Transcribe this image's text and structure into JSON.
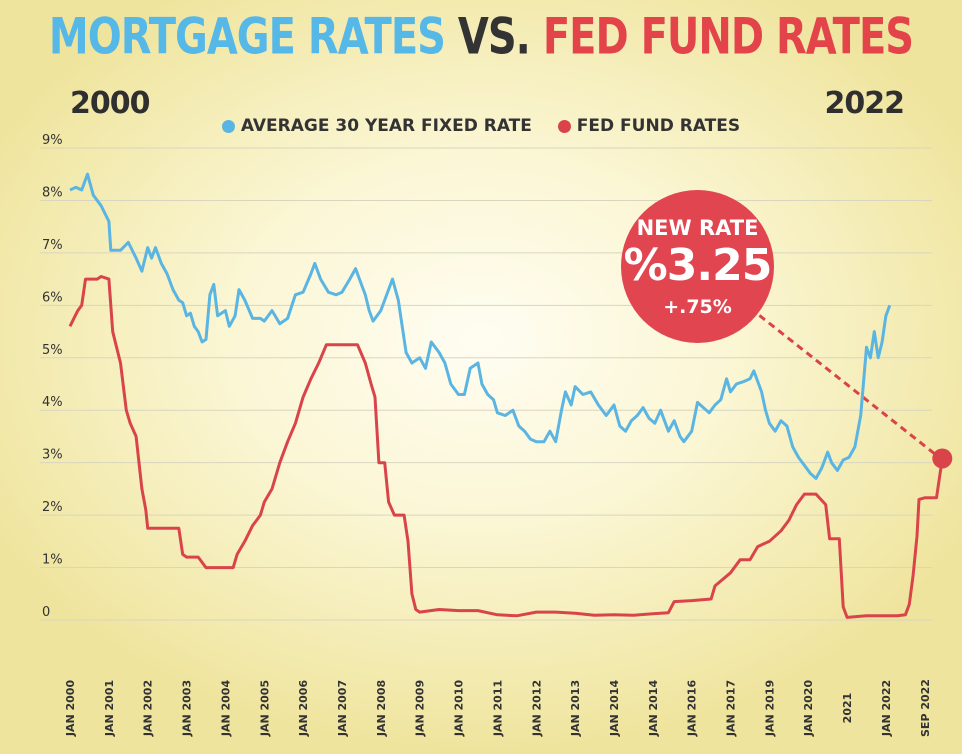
{
  "title": {
    "part1": "MORTGAGE RATES",
    "part2": "VS.",
    "part3": "FED FUND RATES"
  },
  "period": {
    "start": "2000",
    "end": "2022"
  },
  "colors": {
    "mortgage": "#5ab5e2",
    "fed": "#d9444a",
    "title_blue": "#55b8e6",
    "title_red": "#e2444a"
  },
  "annotation": {
    "label": "NEW RATE",
    "rate": "%3.25",
    "change": "+.75%"
  },
  "chart_data": {
    "type": "line",
    "ylim": [
      0,
      9
    ],
    "yticks": [
      {
        "v": 0,
        "label": "0"
      },
      {
        "v": 1,
        "label": "1%"
      },
      {
        "v": 2,
        "label": "2%"
      },
      {
        "v": 3,
        "label": "3%"
      },
      {
        "v": 4,
        "label": "4%"
      },
      {
        "v": 5,
        "label": "5%"
      },
      {
        "v": 6,
        "label": "6%"
      },
      {
        "v": 7,
        "label": "7%"
      },
      {
        "v": 8,
        "label": "8%"
      },
      {
        "v": 9,
        "label": "9%"
      }
    ],
    "xlim": [
      2000.0,
      2022.7
    ],
    "xticks": [
      {
        "x": 2000.0,
        "label": "JAN 2000"
      },
      {
        "x": 2001.0,
        "label": "JAN 2001"
      },
      {
        "x": 2002.0,
        "label": "JAN 2002"
      },
      {
        "x": 2003.0,
        "label": "JAN 2003"
      },
      {
        "x": 2004.0,
        "label": "JAN 2004"
      },
      {
        "x": 2005.0,
        "label": "JAN 2005"
      },
      {
        "x": 2006.0,
        "label": "JAN 2006"
      },
      {
        "x": 2007.0,
        "label": "JAN 2007"
      },
      {
        "x": 2008.0,
        "label": "JAN 2008"
      },
      {
        "x": 2009.0,
        "label": "JAN 2009"
      },
      {
        "x": 2010.0,
        "label": "JAN 2010"
      },
      {
        "x": 2011.0,
        "label": "JAN 2011"
      },
      {
        "x": 2012.0,
        "label": "JAN 2012"
      },
      {
        "x": 2013.0,
        "label": "JAN 2013"
      },
      {
        "x": 2014.0,
        "label": "JAN 2014"
      },
      {
        "x": 2015.0,
        "label": "JAN 2014"
      },
      {
        "x": 2016.0,
        "label": "JAN 2016"
      },
      {
        "x": 2017.0,
        "label": "JAN 2017"
      },
      {
        "x": 2018.0,
        "label": "JAN 2019"
      },
      {
        "x": 2019.0,
        "label": "JAN 2020"
      },
      {
        "x": 2020.0,
        "label": "2021"
      },
      {
        "x": 2021.0,
        "label": "JAN 2022"
      },
      {
        "x": 2022.0,
        "label": "SEP 2022"
      }
    ],
    "series": [
      {
        "name": "AVERAGE 30 YEAR FIXED RATE",
        "points": [
          [
            2000.0,
            8.2
          ],
          [
            2000.15,
            8.25
          ],
          [
            2000.3,
            8.2
          ],
          [
            2000.45,
            8.5
          ],
          [
            2000.6,
            8.1
          ],
          [
            2000.8,
            7.9
          ],
          [
            2001.0,
            7.6
          ],
          [
            2001.05,
            7.05
          ],
          [
            2001.3,
            7.05
          ],
          [
            2001.5,
            7.2
          ],
          [
            2001.7,
            6.9
          ],
          [
            2001.85,
            6.65
          ],
          [
            2002.0,
            7.1
          ],
          [
            2002.1,
            6.9
          ],
          [
            2002.2,
            7.1
          ],
          [
            2002.35,
            6.8
          ],
          [
            2002.5,
            6.6
          ],
          [
            2002.65,
            6.3
          ],
          [
            2002.8,
            6.1
          ],
          [
            2002.9,
            6.05
          ],
          [
            2003.0,
            5.8
          ],
          [
            2003.1,
            5.85
          ],
          [
            2003.2,
            5.6
          ],
          [
            2003.3,
            5.5
          ],
          [
            2003.4,
            5.3
          ],
          [
            2003.5,
            5.35
          ],
          [
            2003.6,
            6.2
          ],
          [
            2003.7,
            6.4
          ],
          [
            2003.8,
            5.8
          ],
          [
            2004.0,
            5.9
          ],
          [
            2004.1,
            5.6
          ],
          [
            2004.25,
            5.8
          ],
          [
            2004.35,
            6.3
          ],
          [
            2004.5,
            6.1
          ],
          [
            2004.7,
            5.75
          ],
          [
            2004.9,
            5.75
          ],
          [
            2005.0,
            5.7
          ],
          [
            2005.2,
            5.9
          ],
          [
            2005.4,
            5.65
          ],
          [
            2005.6,
            5.75
          ],
          [
            2005.8,
            6.2
          ],
          [
            2006.0,
            6.25
          ],
          [
            2006.2,
            6.6
          ],
          [
            2006.3,
            6.8
          ],
          [
            2006.45,
            6.5
          ],
          [
            2006.65,
            6.25
          ],
          [
            2006.85,
            6.2
          ],
          [
            2007.0,
            6.25
          ],
          [
            2007.2,
            6.5
          ],
          [
            2007.35,
            6.7
          ],
          [
            2007.5,
            6.4
          ],
          [
            2007.6,
            6.2
          ],
          [
            2007.7,
            5.9
          ],
          [
            2007.8,
            5.7
          ],
          [
            2008.0,
            5.9
          ],
          [
            2008.1,
            6.1
          ],
          [
            2008.2,
            6.3
          ],
          [
            2008.3,
            6.5
          ],
          [
            2008.45,
            6.1
          ],
          [
            2008.55,
            5.6
          ],
          [
            2008.65,
            5.1
          ],
          [
            2008.8,
            4.9
          ],
          [
            2009.0,
            5.0
          ],
          [
            2009.15,
            4.8
          ],
          [
            2009.3,
            5.3
          ],
          [
            2009.5,
            5.1
          ],
          [
            2009.65,
            4.9
          ],
          [
            2009.8,
            4.5
          ],
          [
            2010.0,
            4.3
          ],
          [
            2010.15,
            4.3
          ],
          [
            2010.3,
            4.8
          ],
          [
            2010.5,
            4.9
          ],
          [
            2010.6,
            4.5
          ],
          [
            2010.75,
            4.3
          ],
          [
            2010.9,
            4.2
          ],
          [
            2011.0,
            3.95
          ],
          [
            2011.2,
            3.9
          ],
          [
            2011.4,
            4.0
          ],
          [
            2011.55,
            3.7
          ],
          [
            2011.7,
            3.6
          ],
          [
            2011.85,
            3.45
          ],
          [
            2012.0,
            3.4
          ],
          [
            2012.2,
            3.4
          ],
          [
            2012.35,
            3.6
          ],
          [
            2012.5,
            3.4
          ],
          [
            2012.65,
            4.0
          ],
          [
            2012.75,
            4.35
          ],
          [
            2012.9,
            4.1
          ],
          [
            2013.0,
            4.45
          ],
          [
            2013.2,
            4.3
          ],
          [
            2013.4,
            4.35
          ],
          [
            2013.6,
            4.1
          ],
          [
            2013.8,
            3.9
          ],
          [
            2014.0,
            4.1
          ],
          [
            2014.15,
            3.7
          ],
          [
            2014.3,
            3.6
          ],
          [
            2014.45,
            3.8
          ],
          [
            2014.6,
            3.9
          ],
          [
            2014.75,
            4.05
          ],
          [
            2014.9,
            3.85
          ],
          [
            2015.05,
            3.75
          ],
          [
            2015.2,
            4.0
          ],
          [
            2015.4,
            3.6
          ],
          [
            2015.55,
            3.8
          ],
          [
            2015.7,
            3.5
          ],
          [
            2015.8,
            3.4
          ],
          [
            2016.0,
            3.6
          ],
          [
            2016.15,
            4.15
          ],
          [
            2016.3,
            4.05
          ],
          [
            2016.45,
            3.95
          ],
          [
            2016.6,
            4.1
          ],
          [
            2016.75,
            4.2
          ],
          [
            2016.9,
            4.6
          ],
          [
            2017.0,
            4.35
          ],
          [
            2017.15,
            4.5
          ],
          [
            2017.35,
            4.55
          ],
          [
            2017.5,
            4.6
          ],
          [
            2017.6,
            4.75
          ],
          [
            2017.8,
            4.35
          ],
          [
            2017.9,
            4.0
          ],
          [
            2018.0,
            3.75
          ],
          [
            2018.15,
            3.6
          ],
          [
            2018.3,
            3.8
          ],
          [
            2018.45,
            3.7
          ],
          [
            2018.6,
            3.3
          ],
          [
            2018.75,
            3.1
          ],
          [
            2018.9,
            2.95
          ],
          [
            2019.05,
            2.8
          ],
          [
            2019.2,
            2.7
          ],
          [
            2019.35,
            2.9
          ],
          [
            2019.5,
            3.2
          ],
          [
            2019.6,
            3.0
          ],
          [
            2019.75,
            2.85
          ],
          [
            2019.9,
            3.05
          ],
          [
            2020.05,
            3.1
          ],
          [
            2020.2,
            3.3
          ],
          [
            2020.35,
            3.9
          ],
          [
            2020.5,
            5.2
          ],
          [
            2020.6,
            5.0
          ],
          [
            2020.7,
            5.5
          ],
          [
            2020.8,
            5.0
          ],
          [
            2020.9,
            5.3
          ],
          [
            2021.0,
            5.8
          ],
          [
            2021.1,
            6.0
          ]
        ]
      },
      {
        "name": "FED FUND RATES",
        "points": [
          [
            2000.0,
            5.6
          ],
          [
            2000.1,
            5.75
          ],
          [
            2000.2,
            5.9
          ],
          [
            2000.3,
            6.0
          ],
          [
            2000.4,
            6.5
          ],
          [
            2000.55,
            6.5
          ],
          [
            2000.7,
            6.5
          ],
          [
            2000.8,
            6.55
          ],
          [
            2001.0,
            6.5
          ],
          [
            2001.1,
            5.5
          ],
          [
            2001.3,
            4.9
          ],
          [
            2001.45,
            4.0
          ],
          [
            2001.55,
            3.75
          ],
          [
            2001.7,
            3.5
          ],
          [
            2001.85,
            2.5
          ],
          [
            2001.95,
            2.1
          ],
          [
            2002.0,
            1.75
          ],
          [
            2002.2,
            1.75
          ],
          [
            2002.5,
            1.75
          ],
          [
            2002.8,
            1.75
          ],
          [
            2002.9,
            1.25
          ],
          [
            2003.0,
            1.2
          ],
          [
            2003.3,
            1.2
          ],
          [
            2003.5,
            1.0
          ],
          [
            2003.7,
            1.0
          ],
          [
            2004.0,
            1.0
          ],
          [
            2004.2,
            1.0
          ],
          [
            2004.3,
            1.25
          ],
          [
            2004.5,
            1.5
          ],
          [
            2004.7,
            1.8
          ],
          [
            2004.9,
            2.0
          ],
          [
            2005.0,
            2.25
          ],
          [
            2005.2,
            2.5
          ],
          [
            2005.4,
            3.0
          ],
          [
            2005.6,
            3.4
          ],
          [
            2005.8,
            3.75
          ],
          [
            2006.0,
            4.25
          ],
          [
            2006.2,
            4.6
          ],
          [
            2006.4,
            4.9
          ],
          [
            2006.6,
            5.25
          ],
          [
            2006.8,
            5.25
          ],
          [
            2007.0,
            5.25
          ],
          [
            2007.2,
            5.25
          ],
          [
            2007.4,
            5.25
          ],
          [
            2007.6,
            4.9
          ],
          [
            2007.75,
            4.5
          ],
          [
            2007.85,
            4.25
          ],
          [
            2007.95,
            3.0
          ],
          [
            2008.1,
            3.0
          ],
          [
            2008.2,
            2.25
          ],
          [
            2008.35,
            2.0
          ],
          [
            2008.6,
            2.0
          ],
          [
            2008.7,
            1.5
          ],
          [
            2008.8,
            0.5
          ],
          [
            2008.9,
            0.2
          ],
          [
            2009.0,
            0.15
          ],
          [
            2009.5,
            0.2
          ],
          [
            2010.0,
            0.18
          ],
          [
            2010.5,
            0.18
          ],
          [
            2011.0,
            0.1
          ],
          [
            2011.5,
            0.08
          ],
          [
            2012.0,
            0.15
          ],
          [
            2012.5,
            0.15
          ],
          [
            2013.0,
            0.13
          ],
          [
            2013.5,
            0.09
          ],
          [
            2014.0,
            0.1
          ],
          [
            2014.5,
            0.09
          ],
          [
            2015.0,
            0.12
          ],
          [
            2015.4,
            0.14
          ],
          [
            2015.55,
            0.35
          ],
          [
            2016.0,
            0.37
          ],
          [
            2016.5,
            0.4
          ],
          [
            2016.6,
            0.65
          ],
          [
            2017.0,
            0.9
          ],
          [
            2017.25,
            1.15
          ],
          [
            2017.5,
            1.15
          ],
          [
            2017.7,
            1.4
          ],
          [
            2018.0,
            1.5
          ],
          [
            2018.3,
            1.7
          ],
          [
            2018.5,
            1.9
          ],
          [
            2018.7,
            2.2
          ],
          [
            2018.9,
            2.4
          ],
          [
            2019.2,
            2.4
          ],
          [
            2019.45,
            2.2
          ],
          [
            2019.55,
            1.55
          ],
          [
            2019.8,
            1.55
          ],
          [
            2019.9,
            0.25
          ],
          [
            2020.0,
            0.05
          ],
          [
            2020.5,
            0.08
          ],
          [
            2021.0,
            0.08
          ],
          [
            2021.3,
            0.08
          ],
          [
            2021.5,
            0.1
          ],
          [
            2021.6,
            0.3
          ],
          [
            2021.7,
            0.85
          ],
          [
            2021.8,
            1.6
          ],
          [
            2021.85,
            2.3
          ],
          [
            2022.0,
            2.33
          ],
          [
            2022.2,
            2.33
          ],
          [
            2022.3,
            2.33
          ],
          [
            2022.45,
            3.08
          ]
        ]
      }
    ],
    "endpoint": {
      "x": 2022.45,
      "y": 3.08
    }
  }
}
